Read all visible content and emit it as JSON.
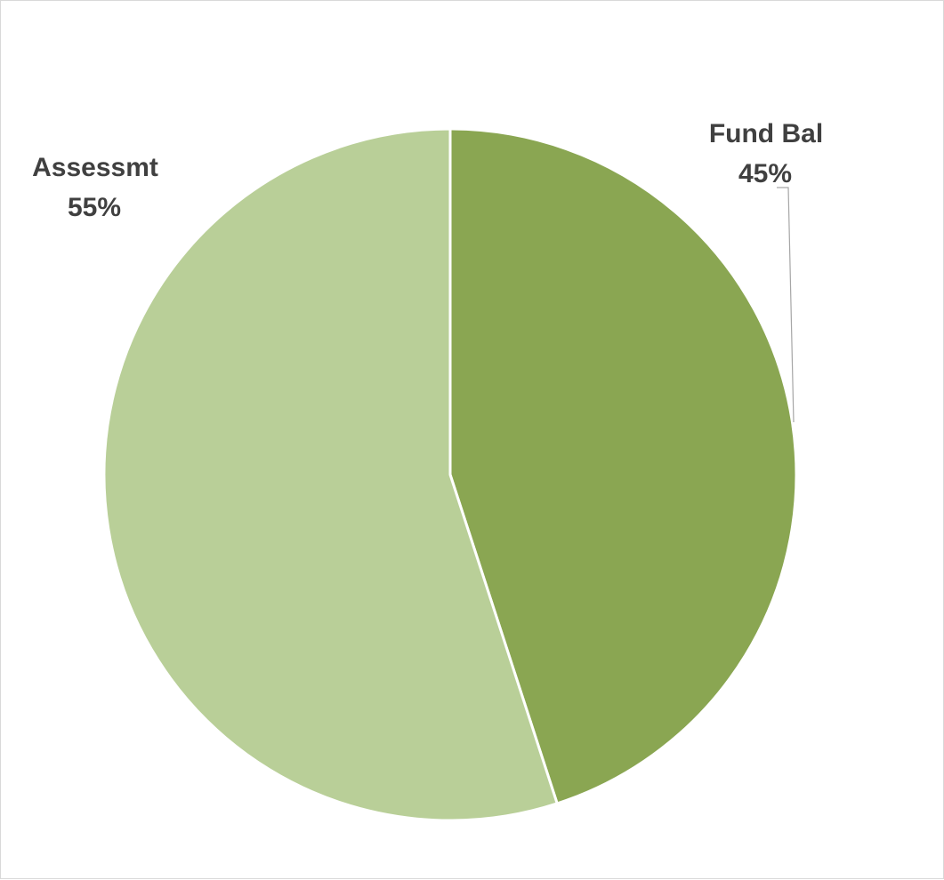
{
  "chart_data": {
    "type": "pie",
    "title": "",
    "slices": [
      {
        "name": "Fund Bal",
        "value": 45,
        "label": "45%",
        "color": "#8aa652"
      },
      {
        "name": "Assessmt",
        "value": 55,
        "label": "55%",
        "color": "#b9cf98"
      }
    ],
    "start_angle_deg": 0,
    "direction": "clockwise",
    "legend": "none",
    "data_labels": "outside, category name and percentage"
  }
}
